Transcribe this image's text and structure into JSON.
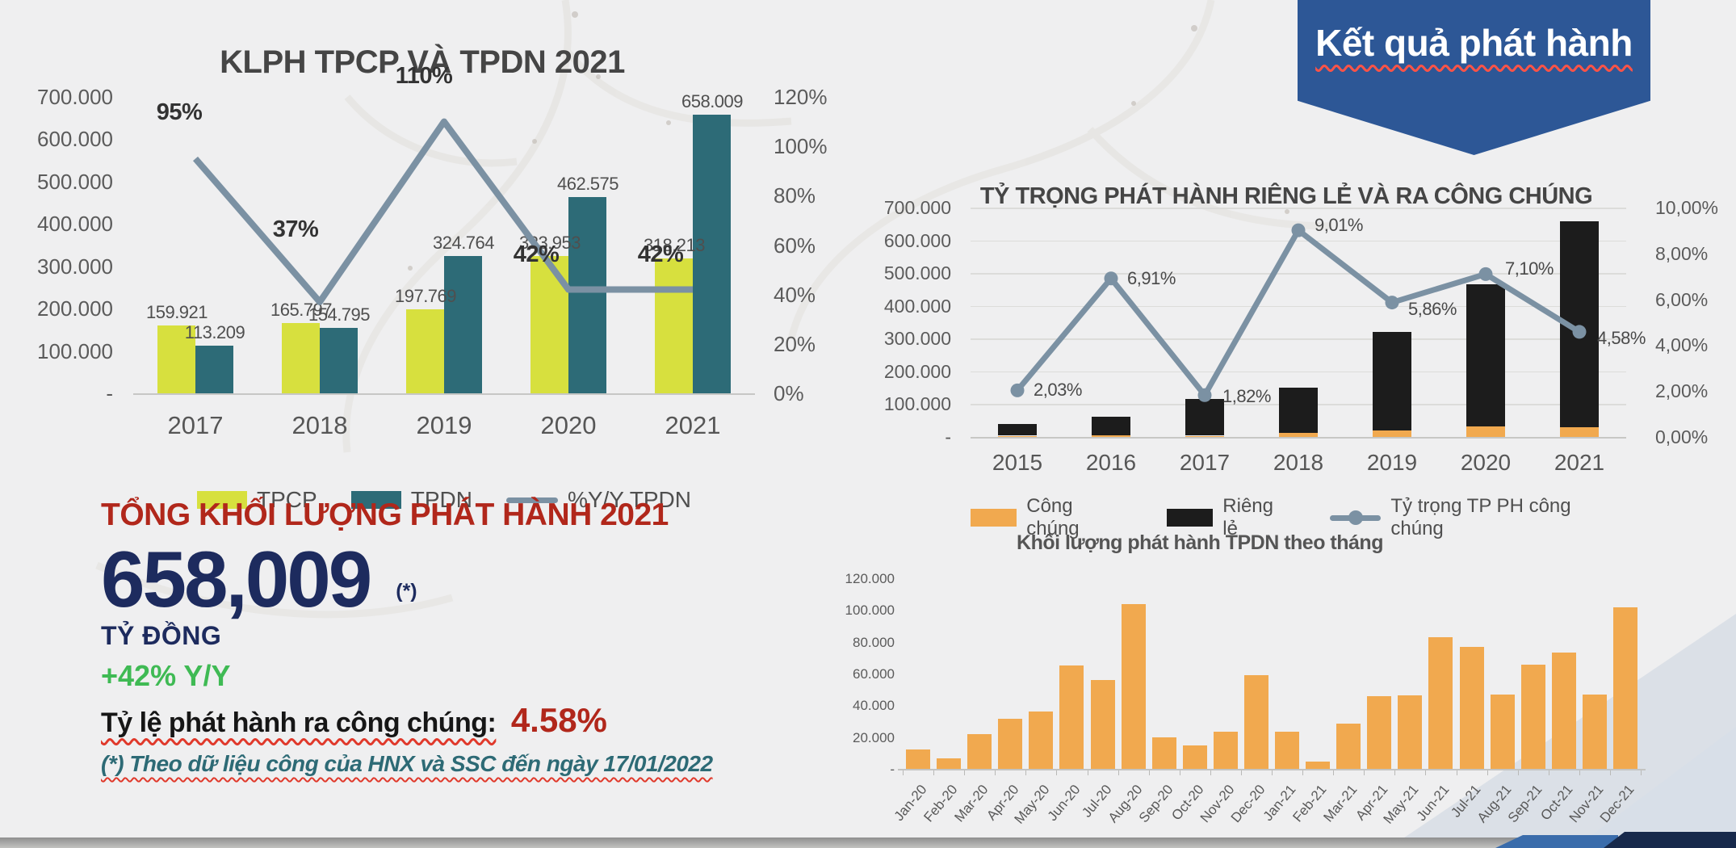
{
  "banner": {
    "label": "Kết quả phát hành",
    "color": "#2d5796"
  },
  "kpi": {
    "title": "TỔNG KHỐI LƯỢNG PHÁT HÀNH 2021",
    "value": "658,009",
    "asterisk": "(*)",
    "unit": "TỶ ĐỒNG",
    "yoy": "+42% Y/Y",
    "public_ratio_label": "Tỷ lệ phát hành ra công chúng:",
    "public_ratio_value": "4.58%",
    "footnote": "(*) Theo dữ liệu công của HNX và SSC đến ngày 17/01/2022",
    "accent_red": "#b1271b",
    "accent_navy": "#1d2b5e",
    "accent_green": "#3fba54",
    "accent_teal": "#2d6a75"
  },
  "chart_data": [
    {
      "id": "klph",
      "type": "bar",
      "title": "KLPH TPCP VÀ TPDN 2021",
      "categories": [
        "2017",
        "2018",
        "2019",
        "2020",
        "2021"
      ],
      "series": [
        {
          "name": "TPCP",
          "type": "bar",
          "color": "#d7e03e",
          "values": [
            159921,
            165797,
            197769,
            323953,
            318213
          ],
          "labels": [
            "159.921",
            "165.797",
            "197.769",
            "323.953",
            "318.213"
          ]
        },
        {
          "name": "TPDN",
          "type": "bar",
          "color": "#2d6b77",
          "values": [
            113209,
            154795,
            324764,
            462575,
            658009
          ],
          "labels": [
            "113.209",
            "154.795",
            "324.764",
            "462.575",
            "658.009"
          ]
        },
        {
          "name": "%Y/Y TPDN",
          "type": "line",
          "color": "#7b91a3",
          "values": [
            95,
            37,
            110,
            42,
            42
          ],
          "labels": [
            "95%",
            "37%",
            "110%",
            "42%",
            "42%"
          ]
        }
      ],
      "left_axis": {
        "max": 700000,
        "ticks": [
          "700.000",
          "600.000",
          "500.000",
          "400.000",
          "300.000",
          "200.000",
          "100.000",
          "-"
        ]
      },
      "right_axis": {
        "max": 120,
        "ticks": [
          "120%",
          "100%",
          "80%",
          "60%",
          "40%",
          "20%",
          "0%"
        ]
      },
      "grid": false,
      "legend_position": "bottom"
    },
    {
      "id": "tytrong",
      "type": "bar",
      "title": "TỶ TRỌNG PHÁT HÀNH RIÊNG LẺ VÀ RA CÔNG CHÚNG",
      "categories": [
        "2015",
        "2016",
        "2017",
        "2018",
        "2019",
        "2020",
        "2021"
      ],
      "stacked": true,
      "series": [
        {
          "name": "Công chúng",
          "type": "bar",
          "color": "#f1a94f",
          "values": [
            800,
            4300,
            2100,
            13500,
            18800,
            33000,
            30100
          ]
        },
        {
          "name": "Riêng lẻ",
          "type": "bar",
          "color": "#1c1c1c",
          "values": [
            36200,
            57700,
            112900,
            136500,
            301200,
            433000,
            627900
          ]
        },
        {
          "name": "Tỷ trọng TP PH công chúng",
          "type": "line",
          "color": "#7b91a3",
          "values": [
            2.03,
            6.91,
            1.82,
            9.01,
            5.86,
            7.1,
            4.58
          ],
          "labels": [
            "2,03%",
            "6,91%",
            "1,82%",
            "9,01%",
            "5,86%",
            "7,10%",
            "4,58%"
          ]
        }
      ],
      "left_axis": {
        "max": 700000,
        "ticks": [
          "700.000",
          "600.000",
          "500.000",
          "400.000",
          "300.000",
          "200.000",
          "100.000",
          "-"
        ]
      },
      "right_axis": {
        "max": 10,
        "ticks": [
          "10,00%",
          "8,00%",
          "6,00%",
          "4,00%",
          "2,00%",
          "0,00%"
        ]
      },
      "grid": true,
      "legend_position": "bottom"
    },
    {
      "id": "monthly",
      "type": "bar",
      "title": "Khối lượng phát hành TPDN theo tháng",
      "categories": [
        "Jan-20",
        "Feb-20",
        "Mar-20",
        "Apr-20",
        "May-20",
        "Jun-20",
        "Jul-20",
        "Aug-20",
        "Sep-20",
        "Oct-20",
        "Nov-20",
        "Dec-20",
        "Jan-21",
        "Feb-21",
        "Mar-21",
        "Apr-21",
        "May-21",
        "Jun-21",
        "Jul-21",
        "Aug-21",
        "Sep-21",
        "Oct-21",
        "Nov-21",
        "Dec-21"
      ],
      "values": [
        12000,
        6500,
        22000,
        31500,
        36000,
        65000,
        56000,
        103500,
        20000,
        14500,
        23500,
        59000,
        23500,
        4500,
        28500,
        46000,
        46500,
        83000,
        77000,
        47000,
        65500,
        73000,
        47000,
        101500
      ],
      "color": "#f1a94f",
      "left_axis": {
        "max": 120000,
        "ticks": [
          "120.000",
          "100.000",
          "80.000",
          "60.000",
          "40.000",
          "20.000",
          "-"
        ]
      },
      "grid": false,
      "legend_position": "none"
    }
  ]
}
